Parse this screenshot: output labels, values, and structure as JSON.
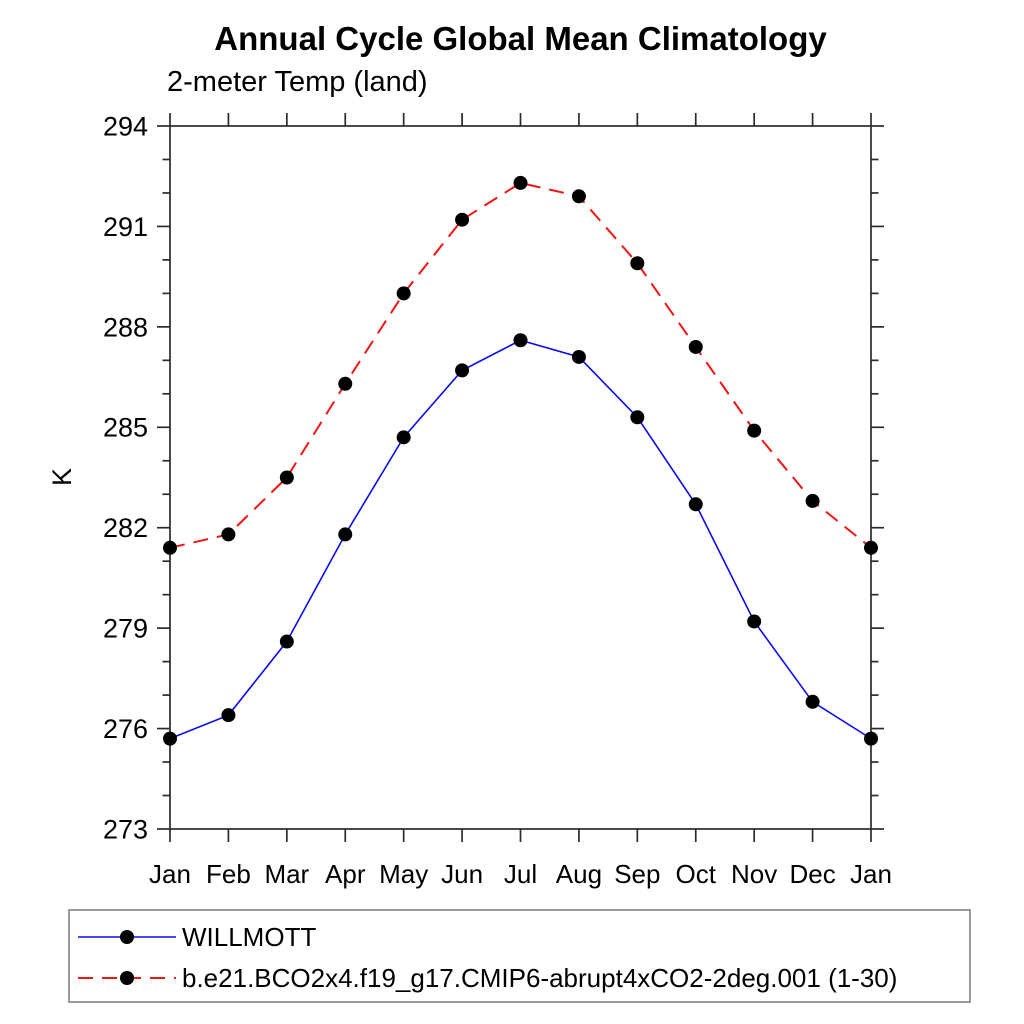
{
  "title": "Annual Cycle Global Mean Climatology",
  "subtitle": "2-meter Temp (land)",
  "ylabel": "K",
  "chart_data": {
    "type": "line",
    "categories": [
      "Jan",
      "Feb",
      "Mar",
      "Apr",
      "May",
      "Jun",
      "Jul",
      "Aug",
      "Sep",
      "Oct",
      "Nov",
      "Dec",
      "Jan"
    ],
    "series": [
      {
        "name": "WILLMOTT",
        "color": "#0b0bf0",
        "line_style": "solid",
        "line_width": 1.6,
        "marker": "filled-circle",
        "marker_color": "#000000",
        "values": [
          275.7,
          276.4,
          278.6,
          281.8,
          284.7,
          286.7,
          287.6,
          287.1,
          285.3,
          282.7,
          279.2,
          276.8,
          275.7
        ]
      },
      {
        "name": "b.e21.BCO2x4.f19_g17.CMIP6-abrupt4xCO2-2deg.001 (1-30)",
        "color": "#f01414",
        "line_style": "dashed",
        "line_width": 2,
        "marker": "filled-circle",
        "marker_color": "#000000",
        "values": [
          281.4,
          281.8,
          283.5,
          286.3,
          289.0,
          291.2,
          292.3,
          291.9,
          289.9,
          287.4,
          284.9,
          282.8,
          281.4
        ]
      }
    ],
    "ylim": [
      273,
      294
    ],
    "ytick_major": [
      273,
      276,
      279,
      282,
      285,
      288,
      291,
      294
    ],
    "ytick_minor_step": 1,
    "grid": false,
    "legend_position": "bottom",
    "frame_color": "#2b2b2b"
  }
}
